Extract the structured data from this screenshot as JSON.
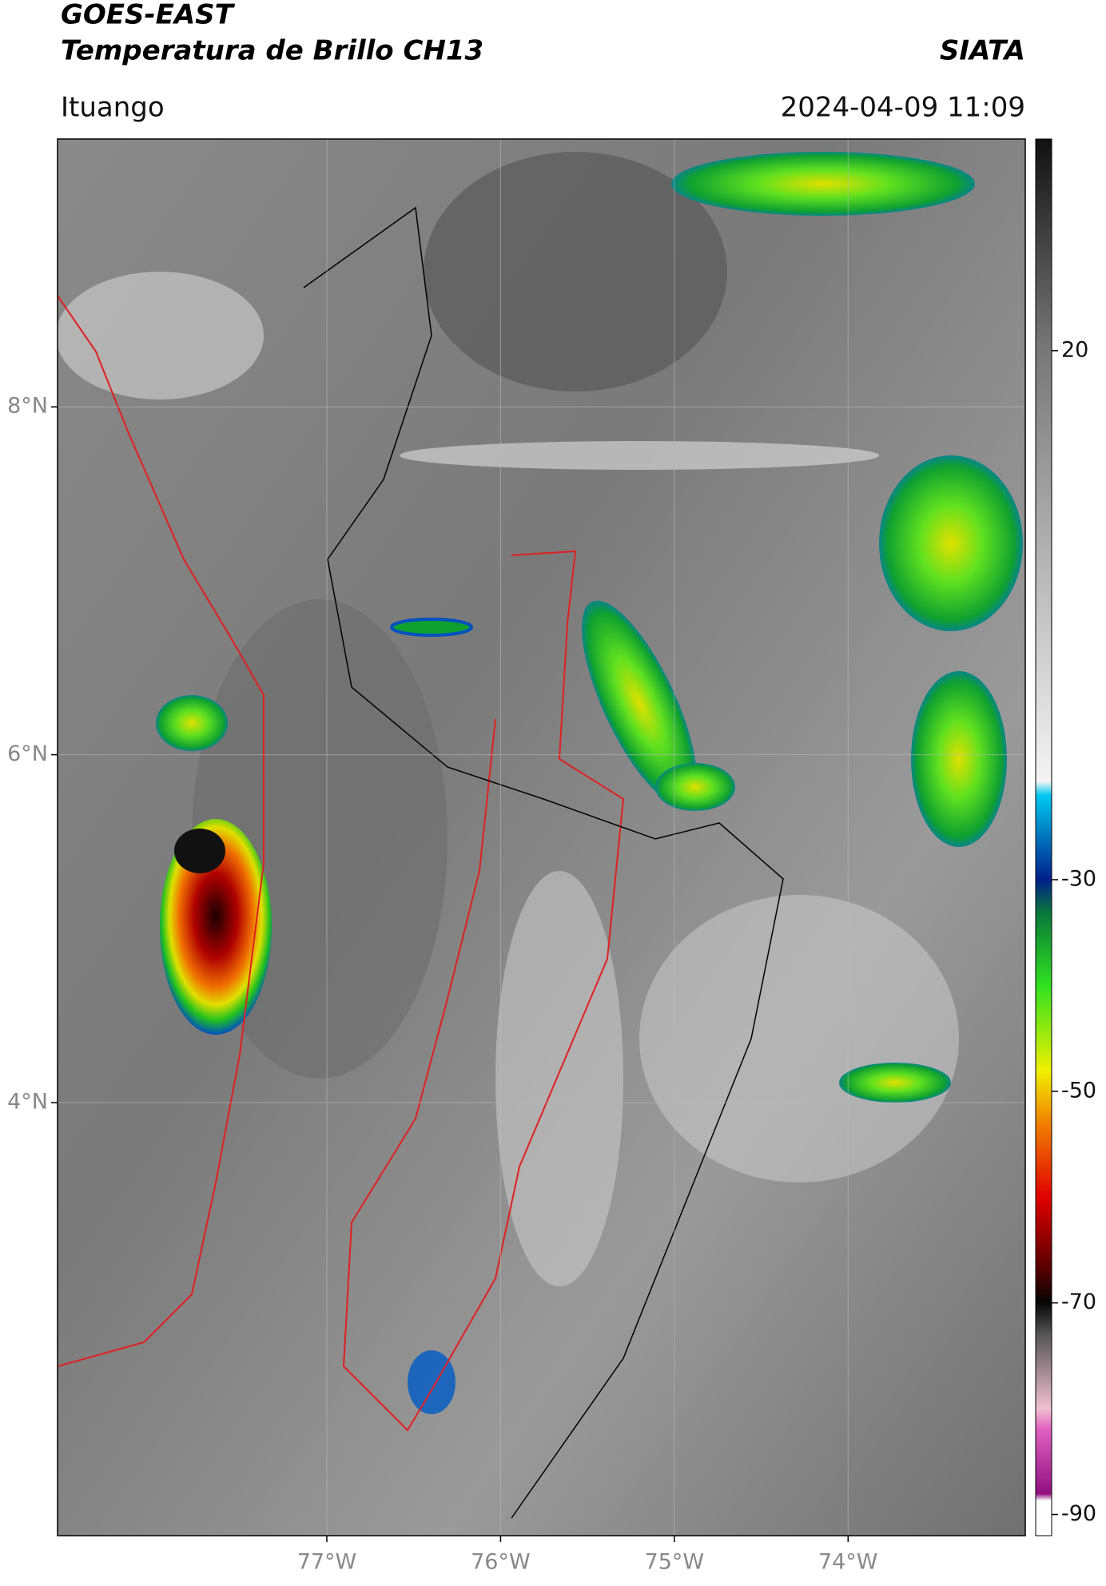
{
  "header": {
    "title": "GOES-EAST",
    "subtitle": "Temperatura de Brillo CH13",
    "source": "SIATA",
    "location": "Ituango",
    "datetime": "2024-04-09 11:09"
  },
  "map": {
    "xlim": [
      -78.55,
      -72.98
    ],
    "ylim": [
      1.51,
      9.54
    ],
    "xticks": [
      {
        "value": -77,
        "label": "77°W"
      },
      {
        "value": -76,
        "label": "76°W"
      },
      {
        "value": -75,
        "label": "75°W"
      },
      {
        "value": -74,
        "label": "74°W"
      }
    ],
    "yticks": [
      {
        "value": 8,
        "label": "8°N"
      },
      {
        "value": 6,
        "label": "6°N"
      },
      {
        "value": 4,
        "label": "4°N"
      }
    ]
  },
  "colorbar": {
    "clim": [
      -92,
      40
    ],
    "ticks": [
      20,
      -30,
      -50,
      -70,
      -90
    ]
  }
}
